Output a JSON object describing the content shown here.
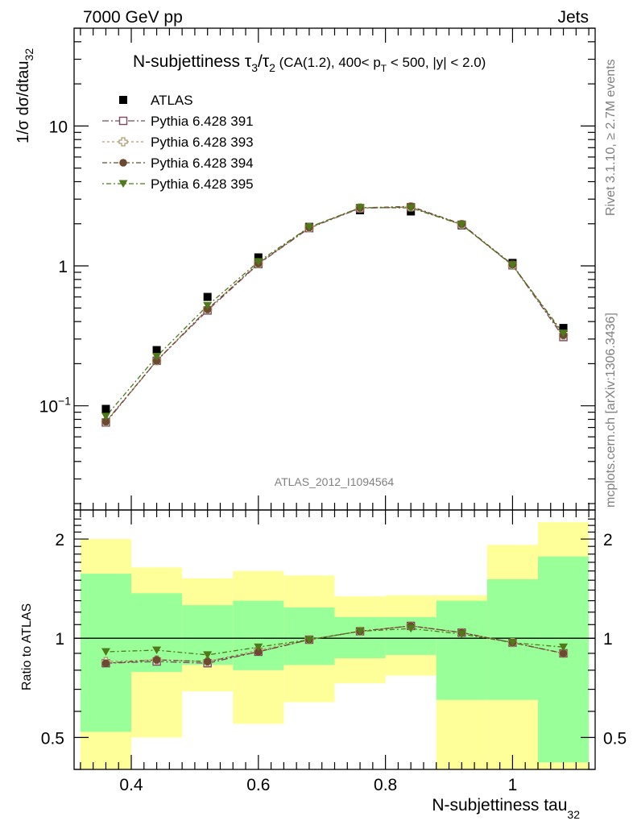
{
  "header": {
    "left": "7000 GeV pp",
    "right": "Jets"
  },
  "title": {
    "prefix": "N-subjettiness ",
    "tau": "τ",
    "sub3": "3",
    "slash": "/",
    "sub2": "2",
    "cuts_a": " (CA(1.2), 400< p",
    "cuts_sub": "T",
    "cuts_b": " < 500, |y| < 2.0)"
  },
  "side_text": {
    "rivet": "Rivet 3.1.10, ≥ 2.7M events",
    "mcplots": "mcplots.cern.ch [arXiv:1306.3436]"
  },
  "analysis_label": "ATLAS_2012_I1094564",
  "colors": {
    "data": "#000000",
    "py391": "#7b4a62",
    "py393": "#b09a6a",
    "py394": "#6b4a2f",
    "py395": "#4f7a1a",
    "band_outer": "#ffff99",
    "band_inner": "#99ff99"
  },
  "chart_data": [
    {
      "type": "line",
      "title": "N-subjettiness τ3/τ2 (CA(1.2), 400< pT < 500, |y| < 2.0)",
      "ylabel_parts": {
        "main": "1/σ dσ/dtau",
        "sub": "32"
      },
      "yscale": "log",
      "ylim": [
        0.018,
        50
      ],
      "xlim": [
        0.31,
        1.13
      ],
      "yticks": [
        {
          "v": 0.1,
          "base": "10",
          "exp": "−1"
        },
        {
          "v": 1,
          "base": "1",
          "exp": ""
        },
        {
          "v": 10,
          "base": "10",
          "exp": ""
        }
      ],
      "x": [
        0.36,
        0.44,
        0.52,
        0.6,
        0.68,
        0.76,
        0.84,
        0.92,
        1.0,
        1.08
      ],
      "legend_position": "top-left",
      "series": [
        {
          "name": "ATLAS",
          "key": "data",
          "marker": "square-filled",
          "values": [
            0.095,
            0.25,
            0.6,
            1.15,
            1.9,
            2.5,
            2.45,
            1.95,
            1.05,
            0.36
          ]
        },
        {
          "name": "Pythia 6.428 391",
          "key": "py391",
          "marker": "square-open",
          "dash": "8,3,2,3",
          "values": [
            0.076,
            0.21,
            0.48,
            1.03,
            1.86,
            2.58,
            2.63,
            1.97,
            1.01,
            0.31
          ]
        },
        {
          "name": "Pythia 6.428 393",
          "key": "py393",
          "marker": "cross-open",
          "dash": "3,3",
          "values": [
            0.077,
            0.21,
            0.49,
            1.04,
            1.87,
            2.6,
            2.64,
            1.98,
            1.01,
            0.32
          ]
        },
        {
          "name": "Pythia 6.428 394",
          "key": "py394",
          "marker": "circle-filled",
          "dash": "6,3,2,3",
          "values": [
            0.077,
            0.21,
            0.49,
            1.04,
            1.88,
            2.6,
            2.66,
            1.99,
            1.02,
            0.32
          ]
        },
        {
          "name": "Pythia 6.428 395",
          "key": "py395",
          "marker": "triangle-down-filled",
          "dash": "2,3,6,3",
          "values": [
            0.084,
            0.225,
            0.52,
            1.07,
            1.89,
            2.61,
            2.6,
            1.97,
            1.01,
            0.33
          ]
        }
      ]
    },
    {
      "type": "line",
      "ylabel": "Ratio to ATLAS",
      "xlabel_parts": {
        "main": "N-subjettiness tau",
        "sub": "32"
      },
      "yscale": "log",
      "ylim": [
        0.4,
        2.45
      ],
      "xlim": [
        0.31,
        1.13
      ],
      "yticks": [
        0.5,
        1,
        2
      ],
      "xticks": [
        0.4,
        0.6,
        0.8,
        1
      ],
      "reference_line": 1,
      "bands": {
        "edges": [
          0.32,
          0.4,
          0.48,
          0.56,
          0.64,
          0.72,
          0.8,
          0.88,
          0.96,
          1.04,
          1.12
        ],
        "outer_lo": [
          0.4,
          0.5,
          0.69,
          0.55,
          0.64,
          0.73,
          0.77,
          0.4,
          0.4,
          0.4
        ],
        "outer_hi": [
          2.0,
          1.64,
          1.52,
          1.6,
          1.55,
          1.34,
          1.35,
          1.35,
          1.92,
          2.25
        ],
        "inner_lo": [
          0.52,
          0.79,
          0.83,
          0.8,
          0.83,
          0.87,
          0.89,
          0.65,
          0.65,
          0.42
        ],
        "inner_hi": [
          1.57,
          1.37,
          1.26,
          1.3,
          1.24,
          1.16,
          1.16,
          1.3,
          1.51,
          1.77
        ]
      },
      "series": [
        {
          "name": "Pythia 6.428 391",
          "key": "py391",
          "marker": "square-open",
          "dash": "8,3,2,3",
          "values": [
            0.84,
            0.85,
            0.84,
            0.91,
            0.99,
            1.05,
            1.09,
            1.04,
            0.97,
            0.9
          ]
        },
        {
          "name": "Pythia 6.428 393",
          "key": "py393",
          "marker": "cross-open",
          "dash": "3,3",
          "values": [
            0.85,
            0.86,
            0.85,
            0.92,
            0.99,
            1.05,
            1.09,
            1.04,
            0.97,
            0.9
          ]
        },
        {
          "name": "Pythia 6.428 394",
          "key": "py394",
          "marker": "circle-filled",
          "dash": "6,3,2,3",
          "values": [
            0.84,
            0.86,
            0.85,
            0.91,
            0.99,
            1.05,
            1.09,
            1.04,
            0.97,
            0.9
          ]
        },
        {
          "name": "Pythia 6.428 395",
          "key": "py395",
          "marker": "triangle-down-filled",
          "dash": "2,3,6,3",
          "values": [
            0.91,
            0.92,
            0.89,
            0.94,
            0.99,
            1.05,
            1.07,
            1.03,
            0.97,
            0.94
          ]
        }
      ]
    }
  ]
}
